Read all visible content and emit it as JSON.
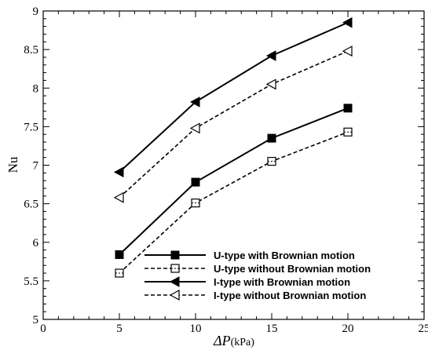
{
  "chart_data": {
    "type": "line",
    "xlabel": {
      "symbol": "ΔP",
      "unit": "(kPa)"
    },
    "ylabel": "Nu",
    "xlim": [
      0,
      25
    ],
    "ylim": [
      5,
      9
    ],
    "xticks": [
      "0",
      "5",
      "10",
      "15",
      "20",
      "25"
    ],
    "yticks": [
      "5",
      "5.5",
      "6",
      "6.5",
      "7",
      "7.5",
      "8",
      "8.5",
      "9"
    ],
    "grid": false,
    "legend_position": "bottom-right",
    "x": [
      5,
      10,
      15,
      20
    ],
    "series": [
      {
        "name": "U-type with Brownian motion",
        "values": [
          5.84,
          6.78,
          7.35,
          7.74
        ],
        "marker": "filled-square",
        "line": "solid",
        "color": "#000000"
      },
      {
        "name": "U-type without Brownian motion",
        "values": [
          5.6,
          6.51,
          7.05,
          7.43
        ],
        "marker": "open-square",
        "line": "dashed",
        "color": "#000000"
      },
      {
        "name": "I-type with Brownian motion",
        "values": [
          6.91,
          7.82,
          8.42,
          8.85
        ],
        "marker": "filled-left-triangle",
        "line": "solid",
        "color": "#000000"
      },
      {
        "name": "I-type without Brownian motion",
        "values": [
          6.58,
          7.48,
          8.05,
          8.48
        ],
        "marker": "open-left-triangle",
        "line": "dashed",
        "color": "#000000"
      }
    ]
  }
}
